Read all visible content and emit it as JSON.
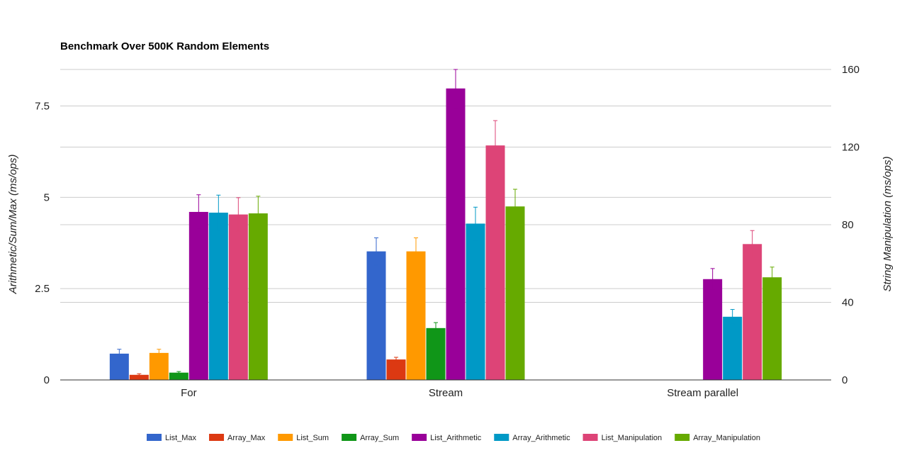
{
  "chart_data": {
    "type": "bar",
    "title": "Benchmark Over 500K Random Elements",
    "ylabel_left": "Arithmetic/Sum/Max (ms/ops)",
    "ylabel_right": "String Manipulation (ms/ops)",
    "xlabel": "",
    "categories": [
      "For",
      "Stream",
      "Stream parallel"
    ],
    "ylim_left": [
      0,
      8.5
    ],
    "ylim_right": [
      0,
      160
    ],
    "yticks_left": [
      {
        "value": 0,
        "label": "0"
      },
      {
        "value": 2.5,
        "label": "2.5"
      },
      {
        "value": 5,
        "label": "5"
      },
      {
        "value": 7.5,
        "label": "7.5"
      }
    ],
    "yticks_right": [
      {
        "value": 0,
        "label": "0"
      },
      {
        "value": 40,
        "label": "40"
      },
      {
        "value": 80,
        "label": "80"
      },
      {
        "value": 120,
        "label": "120"
      },
      {
        "value": 160,
        "label": "160"
      }
    ],
    "grid": true,
    "legend_position": "bottom",
    "series": [
      {
        "name": "List_Max",
        "color": "#3366cc",
        "axis": "left",
        "values": [
          0.72,
          3.52,
          null
        ],
        "errors": [
          0.12,
          0.37,
          null
        ]
      },
      {
        "name": "Array_Max",
        "color": "#dc3912",
        "axis": "left",
        "values": [
          0.14,
          0.56,
          null
        ],
        "errors": [
          0.03,
          0.06,
          null
        ]
      },
      {
        "name": "List_Sum",
        "color": "#ff9900",
        "axis": "left",
        "values": [
          0.74,
          3.52,
          null
        ],
        "errors": [
          0.1,
          0.37,
          null
        ]
      },
      {
        "name": "Array_Sum",
        "color": "#109618",
        "axis": "left",
        "values": [
          0.2,
          1.42,
          null
        ],
        "errors": [
          0.03,
          0.15,
          null
        ]
      },
      {
        "name": "List_Arithmetic",
        "color": "#990099",
        "axis": "left",
        "values": [
          4.6,
          7.98,
          2.76
        ],
        "errors": [
          0.47,
          0.55,
          0.29
        ]
      },
      {
        "name": "Array_Arithmetic",
        "color": "#0099c6",
        "axis": "left",
        "values": [
          4.58,
          4.28,
          1.73
        ],
        "errors": [
          0.48,
          0.45,
          0.2
        ]
      },
      {
        "name": "List_Manipulation",
        "color": "#dd4477",
        "axis": "left",
        "values": [
          4.53,
          6.42,
          3.72
        ],
        "errors": [
          0.46,
          0.68,
          0.37
        ]
      },
      {
        "name": "Array_Manipulation",
        "color": "#66aa00",
        "axis": "left",
        "values": [
          4.56,
          4.75,
          2.81
        ],
        "errors": [
          0.47,
          0.47,
          0.28
        ]
      }
    ]
  }
}
